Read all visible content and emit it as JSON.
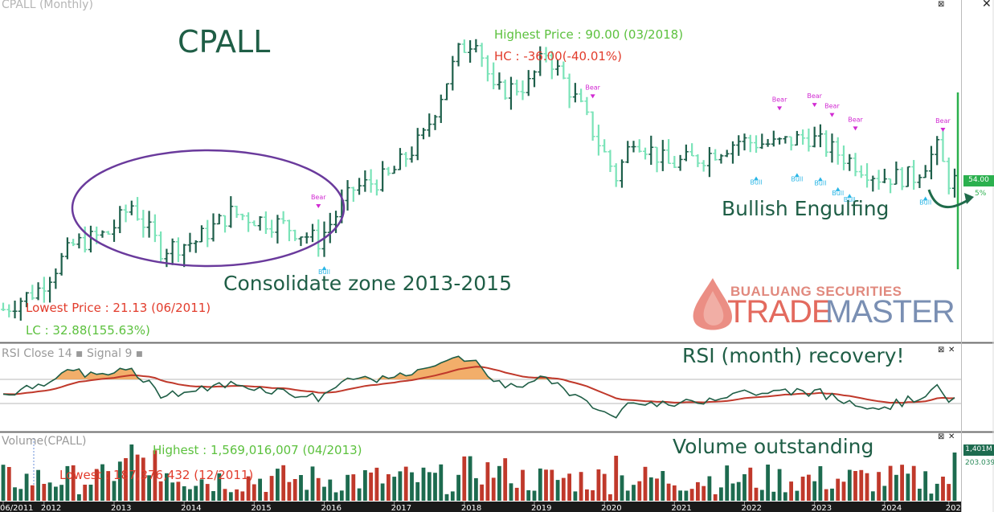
{
  "chart_data": [
    {
      "type": "bar",
      "title": "CPALL",
      "panel_label": "CPALL (Monthly)",
      "x": [
        "06/2011",
        "2012",
        "2013",
        "2014",
        "2015",
        "2016",
        "2017",
        "2018",
        "2019",
        "2020",
        "2021",
        "2022",
        "2023",
        "2024",
        "202"
      ],
      "series": [
        {
          "type": "ohlc",
          "x_range": [
            "2011-06",
            "2025-01"
          ],
          "close_path_monthly": [
            {
              "date": "2011-06",
              "value": 22
            },
            {
              "date": "2011-12",
              "value": 27
            },
            {
              "date": "2012-06",
              "value": 38
            },
            {
              "date": "2012-12",
              "value": 41
            },
            {
              "date": "2013-04",
              "value": 48
            },
            {
              "date": "2013-09",
              "value": 37
            },
            {
              "date": "2014-03",
              "value": 39
            },
            {
              "date": "2014-09",
              "value": 46
            },
            {
              "date": "2015-06",
              "value": 43
            },
            {
              "date": "2015-12",
              "value": 39
            },
            {
              "date": "2016-06",
              "value": 52
            },
            {
              "date": "2016-12",
              "value": 55
            },
            {
              "date": "2017-06",
              "value": 65
            },
            {
              "date": "2017-12",
              "value": 86
            },
            {
              "date": "2018-03",
              "value": 90
            },
            {
              "date": "2018-06",
              "value": 76
            },
            {
              "date": "2018-12",
              "value": 78
            },
            {
              "date": "2019-03",
              "value": 86
            },
            {
              "date": "2019-09",
              "value": 72
            },
            {
              "date": "2020-03",
              "value": 55
            },
            {
              "date": "2020-06",
              "value": 65
            },
            {
              "date": "2020-12",
              "value": 58
            },
            {
              "date": "2021-06",
              "value": 60
            },
            {
              "date": "2021-12",
              "value": 64
            },
            {
              "date": "2022-06",
              "value": 63
            },
            {
              "date": "2022-12",
              "value": 65
            },
            {
              "date": "2023-06",
              "value": 60
            },
            {
              "date": "2023-12",
              "value": 55
            },
            {
              "date": "2024-06",
              "value": 55
            },
            {
              "date": "2024-10",
              "value": 62
            },
            {
              "date": "2024-12",
              "value": 54
            }
          ]
        }
      ],
      "ylim": [
        20,
        95
      ],
      "current_price": "54.00",
      "current_change": "5%",
      "highest": {
        "label": "Highest Price : 90.00 (03/2018)",
        "value": 90.0,
        "date": "2018-03"
      },
      "hc": {
        "label": "HC : -36.00(-40.01%)"
      },
      "lowest": {
        "label": "Lowest Price : 21.13 (06/2011)",
        "value": 21.13,
        "date": "2011-06"
      },
      "lc": {
        "label": "LC : 32.88(155.63%)"
      },
      "signals": [
        {
          "text": "Bear",
          "date": "2015-12"
        },
        {
          "text": "Bull",
          "date": "2016-01"
        },
        {
          "text": "Bear",
          "date": "2019-11"
        },
        {
          "text": "Bear",
          "date": "2022-07"
        },
        {
          "text": "Bull",
          "date": "2022-03"
        },
        {
          "text": "Bull",
          "date": "2022-10"
        },
        {
          "text": "Bear",
          "date": "2023-01"
        },
        {
          "text": "Bull",
          "date": "2023-02"
        },
        {
          "text": "Bear",
          "date": "2023-04"
        },
        {
          "text": "Bull",
          "date": "2023-05"
        },
        {
          "text": "Bear",
          "date": "2023-08"
        },
        {
          "text": "Bull",
          "date": "2023-07"
        },
        {
          "text": "Bear",
          "date": "2024-11"
        },
        {
          "text": "Bull",
          "date": "2024-08"
        }
      ],
      "annotations": [
        "CPALL",
        "Consolidate zone 2013-2015",
        "Bullish Engulfing"
      ]
    },
    {
      "type": "line",
      "title": "RSI Close 14 Signal 9",
      "series": [
        {
          "name": "RSI"
        },
        {
          "name": "Signal"
        }
      ],
      "annotation": "RSI (month) recovery!"
    },
    {
      "type": "bar",
      "title": "Volume(CPALL)",
      "highest": "Highest : 1,569,016,007 (04/2013)",
      "lowest": "Lowest : 187,376,432 (12/2011)",
      "last_value": "1,401M",
      "avg_value": "203.039",
      "annotation": "Volume outstanding"
    }
  ],
  "panels": {
    "price": "CPALL (Monthly)",
    "rsi": "RSI Close 14 ▪ Signal 9 ▪",
    "volume": "Volume(CPALL)"
  },
  "annotations": {
    "title": "CPALL",
    "consolidate": "Consolidate zone 2013-2015",
    "engulfing": "Bullish Engulfing",
    "rsi": "RSI (month) recovery!",
    "volume": "Volume outstanding"
  },
  "stats": {
    "highest": "Highest Price : 90.00 (03/2018)",
    "hc": "HC : -36.00(-40.01%)",
    "lowest": "Lowest Price : 21.13 (06/2011)",
    "lc": "LC : 32.88(155.63%)",
    "vol_highest": "Highest : 1,569,016,007 (04/2013)",
    "vol_lowest": "Lowest : 187,376,432 (12/2011)"
  },
  "tags": {
    "price": "54.00",
    "pct": "5%",
    "vol": "1,401M",
    "vol2": "203.039"
  },
  "watermark": {
    "top": "BUALUANG SECURITIES",
    "trade": "TRADE",
    "master": "MASTER"
  },
  "controls": {
    "pin": "⊠",
    "close": "✕"
  },
  "colors": {
    "up": "#1d5f4a",
    "down": "#7ae3b8",
    "rsi": "#1f5e46",
    "signal": "#c0392b",
    "overbought_fill": "#f0a050",
    "volume_up": "#1d6b4f",
    "volume_down": "#c0392b",
    "bull": "#2ab6e6",
    "bear": "#d12ad2",
    "stat_green": "#5cc13e",
    "stat_red": "#e23c2c",
    "ellipse": "#6a3a9c",
    "engulf_arrow": "#1f6b4a"
  }
}
